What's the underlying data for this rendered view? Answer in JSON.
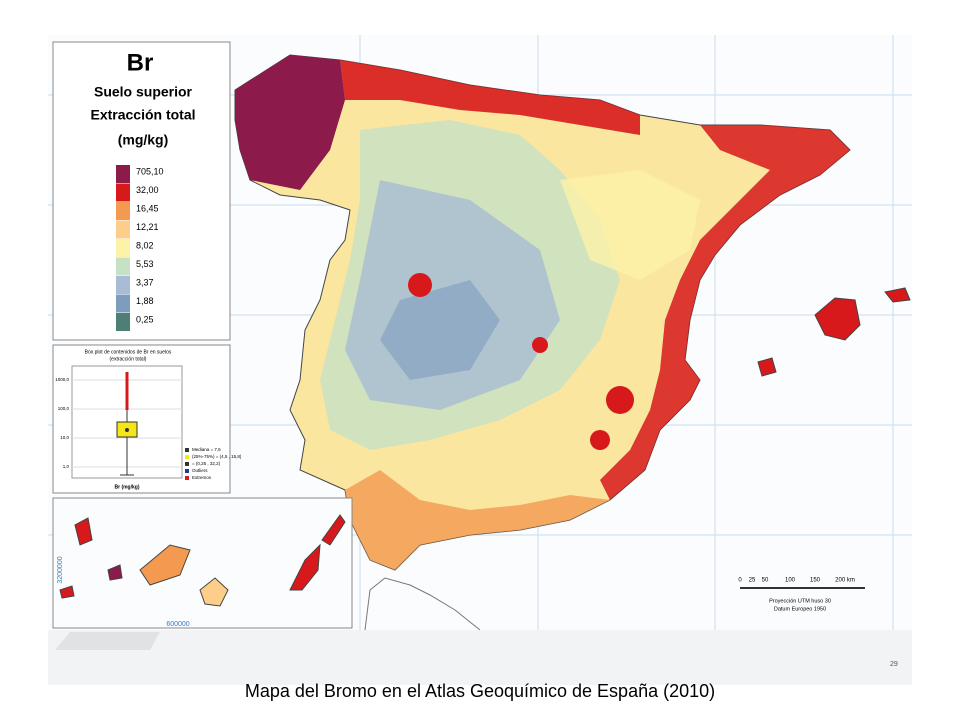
{
  "legend": {
    "element": "Br",
    "lines": [
      "Suelo superior",
      "Extracción total",
      "(mg/kg)"
    ],
    "items": [
      {
        "label": "705,10",
        "color": "#8c1a4b"
      },
      {
        "label": "32,00",
        "color": "#d7191c"
      },
      {
        "label": "16,45",
        "color": "#f49a50"
      },
      {
        "label": "12,21",
        "color": "#fdce8a"
      },
      {
        "label": "8,02",
        "color": "#fdf3a8"
      },
      {
        "label": "5,53",
        "color": "#c6e1c6"
      },
      {
        "label": "3,37",
        "color": "#a8bdd5"
      },
      {
        "label": "1,88",
        "color": "#7d9dbd"
      },
      {
        "label": "0,25",
        "color": "#4f7e74"
      }
    ]
  },
  "boxplot": {
    "title": [
      "Box plot de contenidos de Br en suelos",
      "(extracción total)"
    ],
    "yticks": [
      "1000,0",
      "100,0",
      "10,0",
      "1,0"
    ],
    "xlabel": "Br (mg/kg)",
    "legend": [
      "Mediana = 7,6",
      "(25%-75%) = (4,5 , 15,8)",
      "= (0,25 , 32,2)",
      "Outliers",
      "Extremos"
    ]
  },
  "inset": {
    "y_coordinate": "3200000",
    "x_coordinate": "600000"
  },
  "scale": {
    "ticks": [
      "0",
      "25",
      "50",
      "100",
      "150",
      "200 km"
    ],
    "lines": [
      "Proyección UTM huso 30",
      "Datum Europeo 1950"
    ]
  },
  "page_number": "29",
  "caption": "Mapa del Bromo en el Atlas Geoquímico de España (2010)"
}
